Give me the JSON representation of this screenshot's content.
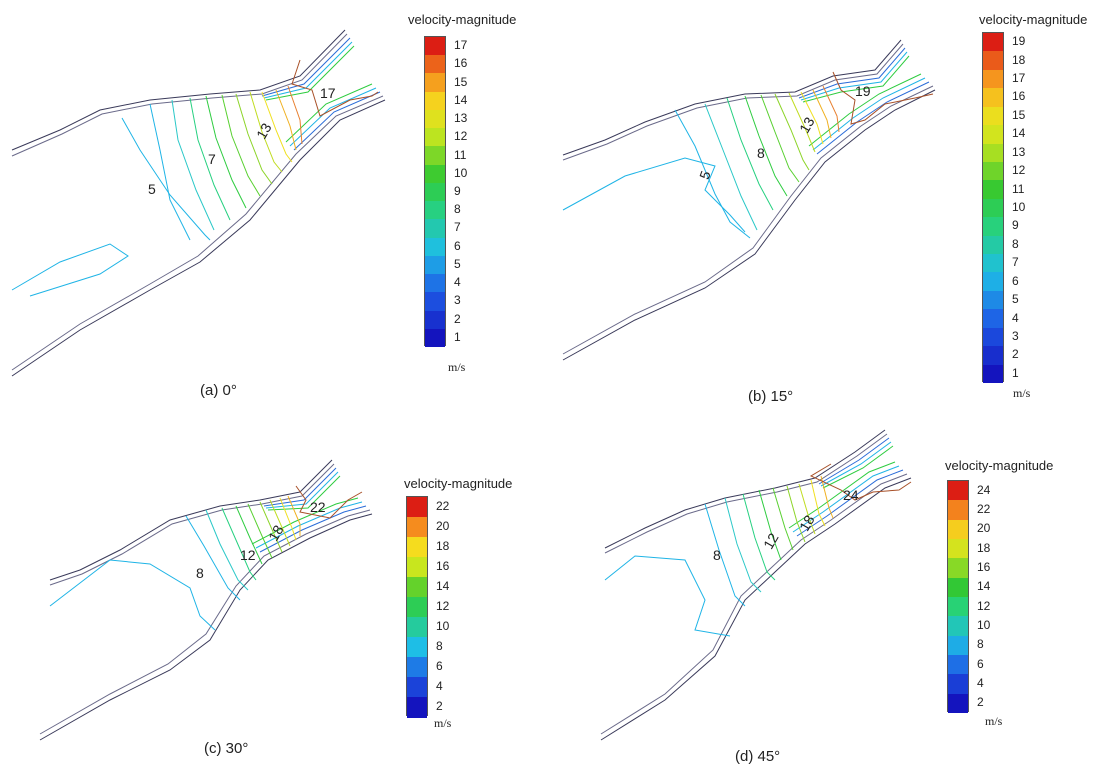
{
  "panels": [
    {
      "caption": "(a) 0°",
      "colorbar": {
        "title": "velocity-magnitude",
        "unit": "m/s",
        "min": 1,
        "max": 17,
        "step": 1,
        "ticks": [
          "17",
          "16",
          "15",
          "14",
          "13",
          "12",
          "11",
          "10",
          "9",
          "8",
          "7",
          "6",
          "5",
          "4",
          "3",
          "2",
          "1"
        ]
      },
      "contour_labels": [
        "17",
        "13",
        "7",
        "5"
      ]
    },
    {
      "caption": "(b) 15°",
      "colorbar": {
        "title": "velocity-magnitude",
        "unit": "m/s",
        "min": 1,
        "max": 19,
        "step": 1,
        "ticks": [
          "19",
          "18",
          "17",
          "16",
          "15",
          "14",
          "13",
          "12",
          "11",
          "10",
          "9",
          "8",
          "7",
          "6",
          "5",
          "4",
          "3",
          "2",
          "1"
        ]
      },
      "contour_labels": [
        "19",
        "13",
        "8",
        "5"
      ]
    },
    {
      "caption": "(c) 30°",
      "colorbar": {
        "title": "velocity-magnitude",
        "unit": "m/s",
        "min": 2,
        "max": 22,
        "step": 2,
        "ticks": [
          "22",
          "20",
          "18",
          "16",
          "14",
          "12",
          "10",
          "8",
          "6",
          "4",
          "2"
        ]
      },
      "contour_labels": [
        "22",
        "18",
        "12",
        "8"
      ]
    },
    {
      "caption": "(d) 45°",
      "colorbar": {
        "title": "velocity-magnitude",
        "unit": "m/s",
        "min": 2,
        "max": 24,
        "step": 2,
        "ticks": [
          "24",
          "22",
          "20",
          "18",
          "16",
          "14",
          "12",
          "10",
          "8",
          "6",
          "4",
          "2"
        ]
      },
      "contour_labels": [
        "24",
        "18",
        "12",
        "8"
      ]
    }
  ],
  "colors": {
    "low": "#1a1ac8",
    "mid_low": "#1fb4e6",
    "mid": "#2ecc40",
    "mid_high": "#f0e020",
    "high": "#e02010"
  }
}
